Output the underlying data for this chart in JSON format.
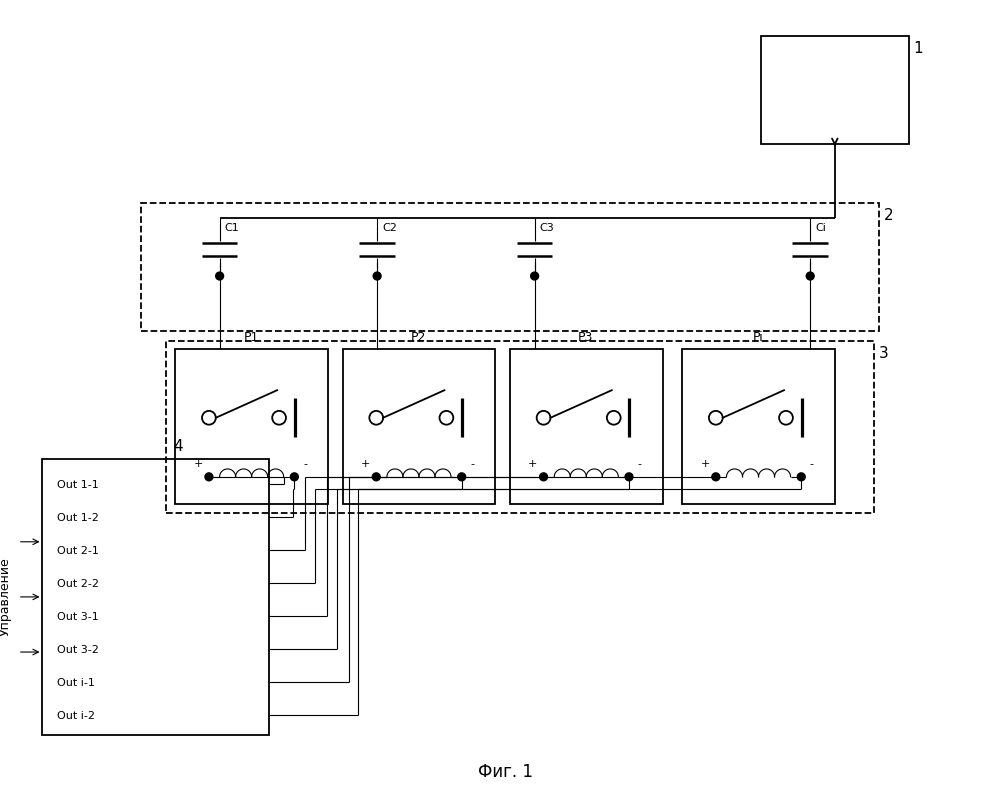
{
  "fig_width": 10.0,
  "fig_height": 8.07,
  "dpi": 100,
  "bg_color": "#ffffff",
  "title": "Фиг. 1",
  "title_fontsize": 12,
  "block1_label": "1",
  "block2_label": "2",
  "block3_label": "3",
  "block4_label": "4",
  "capacitor_labels": [
    "C1",
    "C2",
    "C3",
    "Ci"
  ],
  "relay_labels": [
    "P1",
    "P2",
    "P3",
    "Pi"
  ],
  "output_labels": [
    "Out 1-1",
    "Out 1-2",
    "Out 2-1",
    "Out 2-2",
    "Out 3-1",
    "Out 3-2",
    "Out i-1",
    "Out i-2"
  ],
  "control_label": "Управление"
}
